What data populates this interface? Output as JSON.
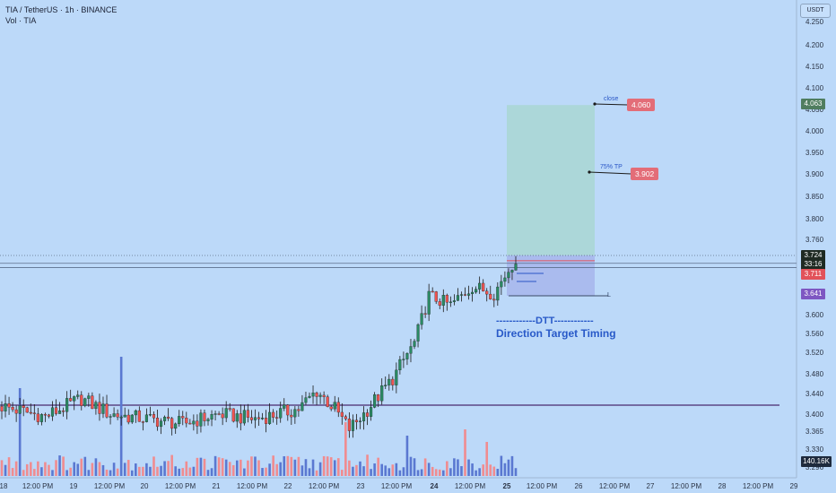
{
  "header": {
    "symbol_line": "TIA / TetherUS · 1h · BINANCE",
    "vol_line": "Vol · TIA"
  },
  "axis": {
    "unit_button": "USDT"
  },
  "chart_data": {
    "type": "candlestick",
    "y_ticks": [
      "4.250",
      "4.200",
      "4.150",
      "4.100",
      "4.050",
      "4.000",
      "3.950",
      "3.900",
      "3.850",
      "3.800",
      "3.760",
      "3.720",
      "3.680",
      "3.640",
      "3.600",
      "3.560",
      "3.520",
      "3.480",
      "3.440",
      "3.400",
      "3.365",
      "3.330",
      "3.296"
    ],
    "x_ticks": [
      "18",
      "12:00 PM",
      "19",
      "12:00 PM",
      "20",
      "12:00 PM",
      "21",
      "12:00 PM",
      "22",
      "12:00 PM",
      "23",
      "12:00 PM",
      "24",
      "12:00 PM",
      "25",
      "12:00 PM",
      "26",
      "12:00 PM",
      "27",
      "12:00 PM",
      "28",
      "12:00 PM",
      "29"
    ],
    "price_badges": [
      {
        "text": "4.063",
        "bg": "#4f7d5f"
      },
      {
        "text": "3.724",
        "bg": "#1e2a22"
      },
      {
        "text": "33:16",
        "bg": "#1e2a22"
      },
      {
        "text": "3.711",
        "bg": "#e2525a"
      },
      {
        "text": "3.641",
        "bg": "#7e57c2"
      },
      {
        "text": "140.16K",
        "bg": "#1e2a3d"
      }
    ],
    "annotations": {
      "close_label": "close",
      "close_value": "4.060",
      "tp_label": "75% TP",
      "tp_value": "3.902",
      "l_label": "L",
      "dtt_line": "------------DTT------------",
      "dtt_caption": "Direction Target Timing"
    },
    "horizontal_levels": [
      3.711,
      3.698
    ],
    "support_level": 3.418,
    "position_box": {
      "entry": 3.726,
      "target": 4.06,
      "stop": 3.64
    },
    "colors": {
      "up": "#2a8a63",
      "down": "#ef5350",
      "vol_up": "#5a78d1",
      "vol_down": "#f08c90",
      "wick": "#1a1a1a",
      "target_zone": "#a9d6d3",
      "stop_zone": "#a7b7ec",
      "support": "#4a2a6e"
    }
  }
}
